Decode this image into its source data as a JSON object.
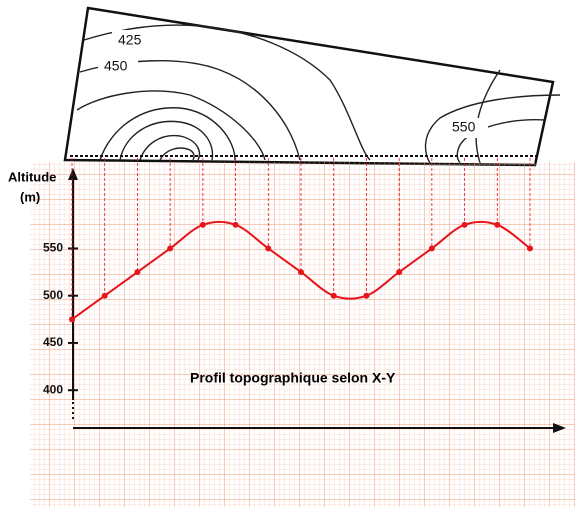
{
  "chart_data": {
    "type": "line",
    "title": "Profil topographique selon X-Y",
    "ylabel": [
      "Altitude",
      "(m)"
    ],
    "categories": [
      null,
      null,
      null,
      null,
      null,
      null,
      null,
      null,
      null,
      null,
      null,
      null,
      null,
      null,
      null
    ],
    "series": [
      {
        "name": null,
        "color": "#e8141c",
        "values": [
          475,
          500,
          525,
          550,
          575,
          575,
          550,
          525,
          500,
          500,
          525,
          550,
          575,
          575,
          550
        ]
      }
    ],
    "ylim": [
      360,
      633
    ],
    "yticks": [
      400,
      450,
      500,
      550
    ]
  },
  "map": {
    "labels": [
      "425",
      "450",
      "550"
    ]
  }
}
